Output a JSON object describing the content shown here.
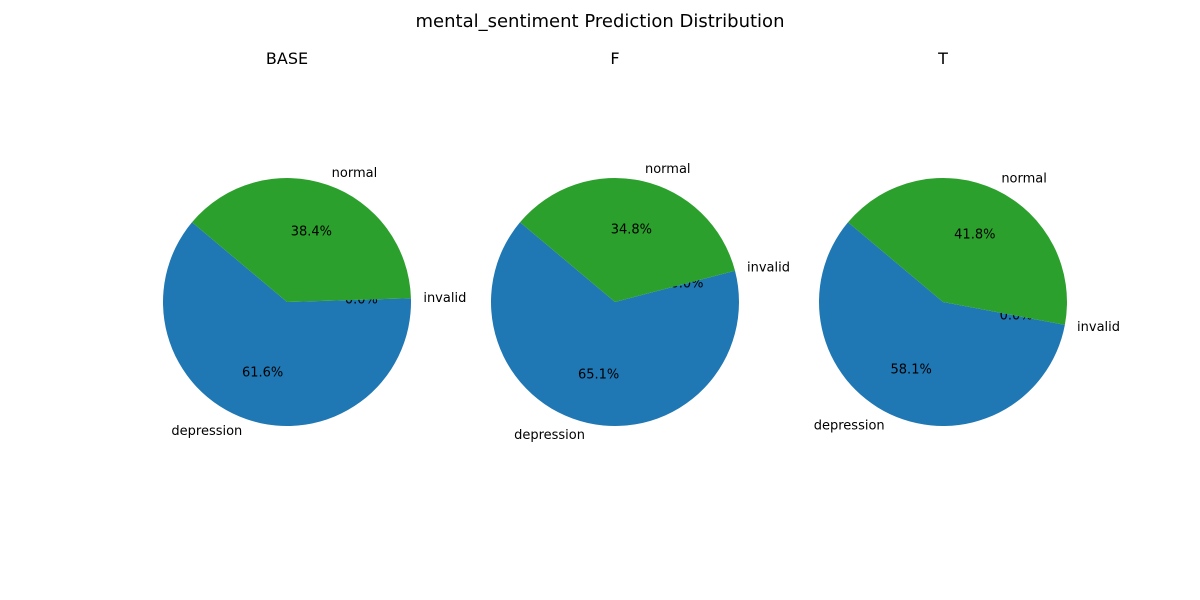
{
  "figure": {
    "title": "mental_sentiment Prediction Distribution"
  },
  "colors": {
    "depression": "#1f77b4",
    "invalid": "#ff7f0e",
    "normal": "#2ca02c"
  },
  "chart_data": [
    {
      "type": "pie",
      "title": "BASE",
      "labels": [
        "depression",
        "invalid",
        "normal"
      ],
      "values": [
        61.6,
        0.0,
        38.4
      ],
      "display": [
        "61.6%",
        "0.0%",
        "38.4%"
      ]
    },
    {
      "type": "pie",
      "title": "F",
      "labels": [
        "depression",
        "invalid",
        "normal"
      ],
      "values": [
        65.1,
        0.0,
        34.8
      ],
      "display": [
        "65.1%",
        "0.0%",
        "34.8%"
      ]
    },
    {
      "type": "pie",
      "title": "T",
      "labels": [
        "depression",
        "invalid",
        "normal"
      ],
      "values": [
        58.1,
        0.0,
        41.8
      ],
      "display": [
        "58.1%",
        "0.0%",
        "41.8%"
      ]
    }
  ]
}
